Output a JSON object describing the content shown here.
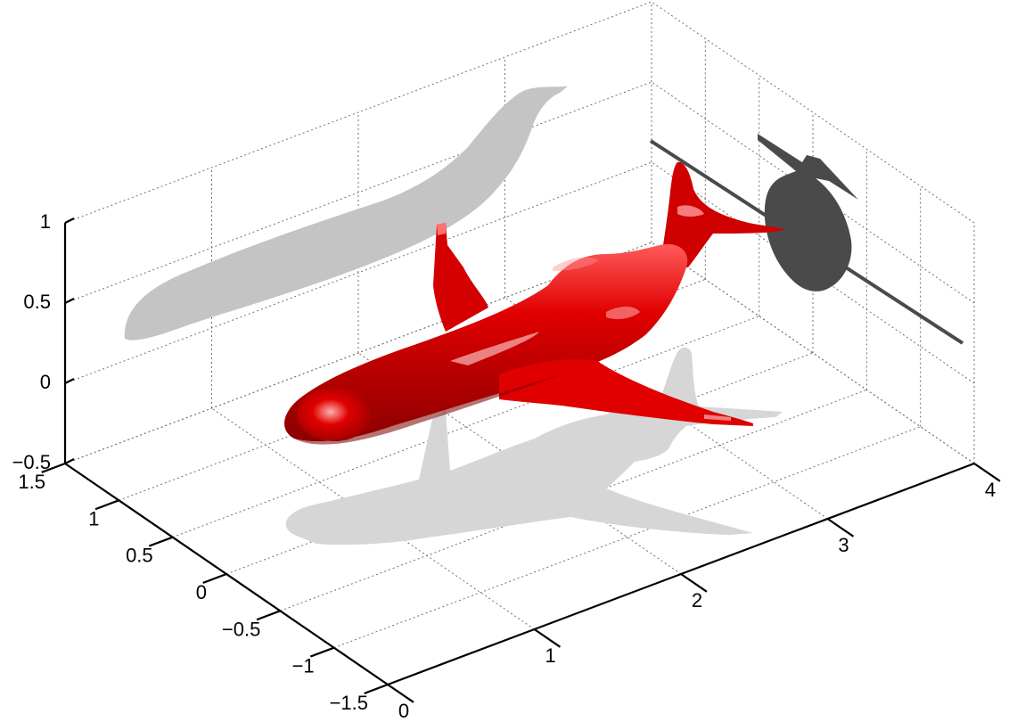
{
  "chart_data": {
    "type": "3d-surface",
    "title": "",
    "xlabel": "",
    "ylabel": "",
    "zlabel": "",
    "xlim": [
      0,
      4
    ],
    "ylim": [
      -1.5,
      1.5
    ],
    "zlim": [
      -0.5,
      1
    ],
    "x_ticks": [
      "0",
      "1",
      "2",
      "3",
      "4"
    ],
    "y_ticks": [
      "−1.5",
      "−1",
      "−0.5",
      "0",
      "0.5",
      "1",
      "1.5"
    ],
    "z_ticks": [
      "−0.5",
      "0",
      "0.5",
      "1"
    ],
    "grid": true,
    "box": false,
    "colors": {
      "surface": "#e00000",
      "surface_highlight": "#ff9a9a",
      "surface_shadow": "#8a0000",
      "shadow_back_wall": "#c4c4c4",
      "shadow_side_wall": "#4a4a4a",
      "shadow_floor": "#d6d6d6"
    },
    "annotations": []
  }
}
